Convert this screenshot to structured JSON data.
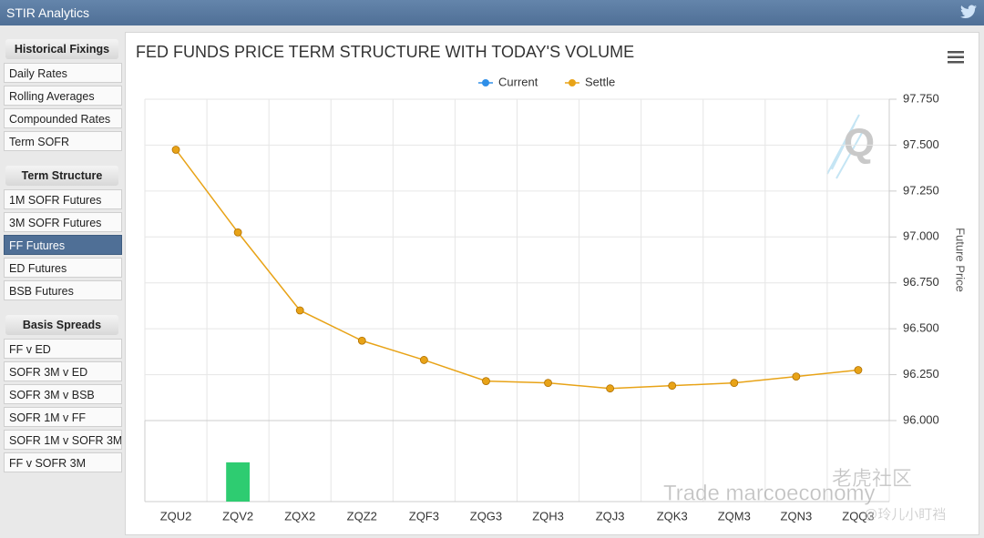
{
  "header": {
    "title": "STIR Analytics"
  },
  "sidebar": {
    "groups": [
      {
        "title": "Historical Fixings",
        "items": [
          {
            "label": "Daily Rates"
          },
          {
            "label": "Rolling Averages"
          },
          {
            "label": "Compounded Rates"
          },
          {
            "label": "Term SOFR"
          }
        ]
      },
      {
        "title": "Term Structure",
        "items": [
          {
            "label": "1M SOFR Futures"
          },
          {
            "label": "3M SOFR Futures"
          },
          {
            "label": "FF Futures",
            "active": true
          },
          {
            "label": "ED Futures"
          },
          {
            "label": "BSB Futures"
          }
        ]
      },
      {
        "title": "Basis Spreads",
        "items": [
          {
            "label": "FF v ED"
          },
          {
            "label": "SOFR 3M v ED"
          },
          {
            "label": "SOFR 3M v BSB"
          },
          {
            "label": "SOFR 1M v FF"
          },
          {
            "label": "SOFR 1M v SOFR 3M"
          },
          {
            "label": "FF v SOFR 3M"
          }
        ]
      }
    ]
  },
  "chart_data": {
    "type": "line",
    "title": "FED FUNDS PRICE TERM STRUCTURE WITH TODAY'S VOLUME",
    "y_label": "Future Price",
    "categories": [
      "ZQU2",
      "ZQV2",
      "ZQX2",
      "ZQZ2",
      "ZQF3",
      "ZQG3",
      "ZQH3",
      "ZQJ3",
      "ZQK3",
      "ZQM3",
      "ZQN3",
      "ZQQ3"
    ],
    "series": [
      {
        "name": "Current",
        "color": "#2f8fe8",
        "values": [
          null,
          null,
          null,
          null,
          null,
          null,
          null,
          null,
          null,
          null,
          null,
          null
        ]
      },
      {
        "name": "Settle",
        "color": "#e8a317",
        "values": [
          97.475,
          97.025,
          96.6,
          96.435,
          96.33,
          96.215,
          96.205,
          96.175,
          96.19,
          96.205,
          96.24,
          96.275
        ]
      }
    ],
    "volume": {
      "color": "#2ecc71",
      "values": [
        null,
        49,
        null,
        null,
        null,
        null,
        null,
        null,
        null,
        null,
        null,
        null
      ],
      "ylim": [
        0,
        100
      ]
    },
    "ylim": [
      96.0,
      97.75
    ],
    "yticks": [
      {
        "value": 96.0,
        "label": "96.000"
      },
      {
        "value": 96.25,
        "label": "96.250"
      },
      {
        "value": 96.5,
        "label": "96.500"
      },
      {
        "value": 96.75,
        "label": "96.750"
      },
      {
        "value": 97.0,
        "label": "97.000"
      },
      {
        "value": 97.25,
        "label": "97.250"
      },
      {
        "value": 97.5,
        "label": "97.500"
      },
      {
        "value": 97.75,
        "label": "97.750"
      }
    ],
    "grid": true,
    "legend": "top"
  },
  "watermark": [
    "Trade marcoeconomy",
    "老虎社区",
    "@玲儿小盯裆"
  ]
}
